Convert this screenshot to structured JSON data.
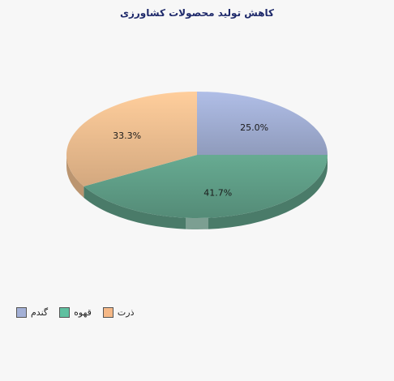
{
  "chart_data": {
    "type": "pie",
    "title": "کاهش تولید محصولات کشاورزی",
    "slices": [
      {
        "label": "گندم",
        "value": 25.0,
        "value_label": "25.0%",
        "color": "#a3b0d6"
      },
      {
        "label": "قهوه",
        "value": 41.7,
        "value_label": "41.7%",
        "color": "#5f9e87"
      },
      {
        "label": "ذرت",
        "value": 33.3,
        "value_label": "33.3%",
        "color": "#f0bf90"
      }
    ],
    "legend_position": "bottom-left",
    "three_d": true
  }
}
